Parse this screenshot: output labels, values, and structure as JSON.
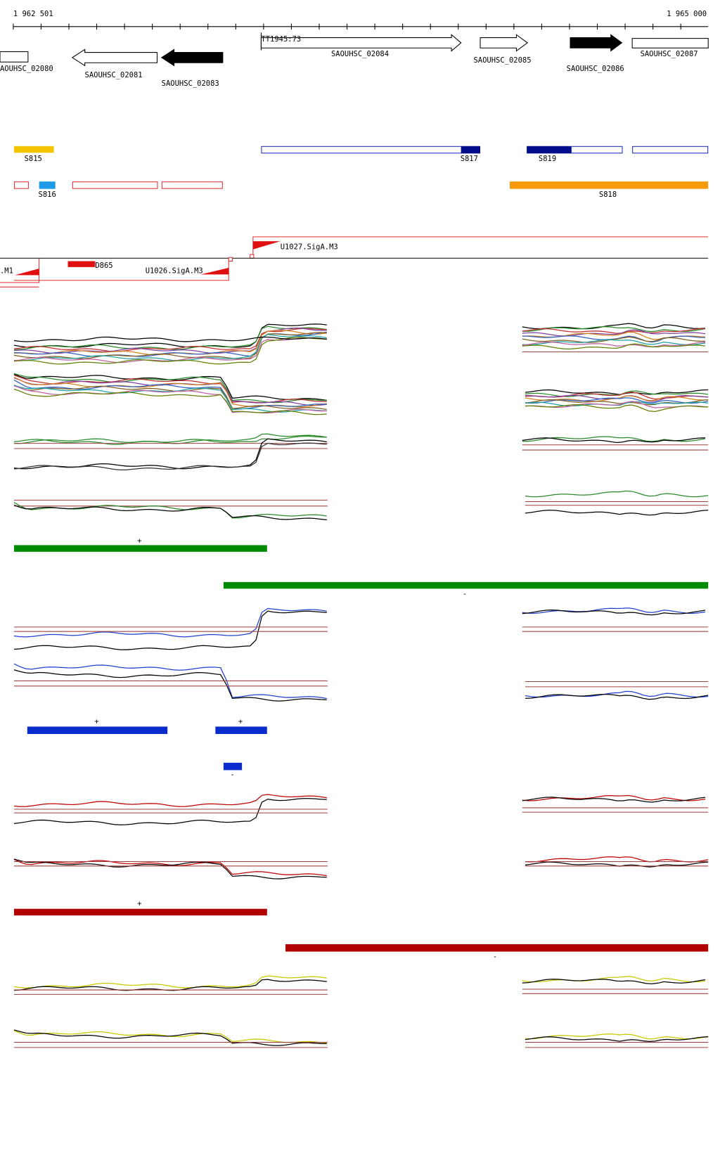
{
  "axis": {
    "start": "1 962 501",
    "end": "1 965 000"
  },
  "genes": [
    {
      "label": "AOUHSC_02080"
    },
    {
      "label": "SAOUHSC_02081"
    },
    {
      "label": "SAOUHSC_02083"
    },
    {
      "label": "SAOUHSC_02084"
    },
    {
      "label": "SAOUHSC_02085"
    },
    {
      "label": "SAOUHSC_02086"
    },
    {
      "label": "SAOUHSC_02087"
    }
  ],
  "terminator": "TT1945:73",
  "segments": [
    {
      "label": "S815"
    },
    {
      "label": "S817"
    },
    {
      "label": "S819"
    },
    {
      "label": "S816"
    },
    {
      "label": "S818"
    }
  ],
  "promoters": [
    {
      "label": "U1027.SigA.M3"
    },
    {
      "label": ".M1"
    },
    {
      "label": "D865"
    },
    {
      "label": "U1026.SigA.M3"
    }
  ],
  "strand_labels": [
    "+",
    "-",
    "+",
    "+",
    "-",
    "+",
    "-"
  ]
}
